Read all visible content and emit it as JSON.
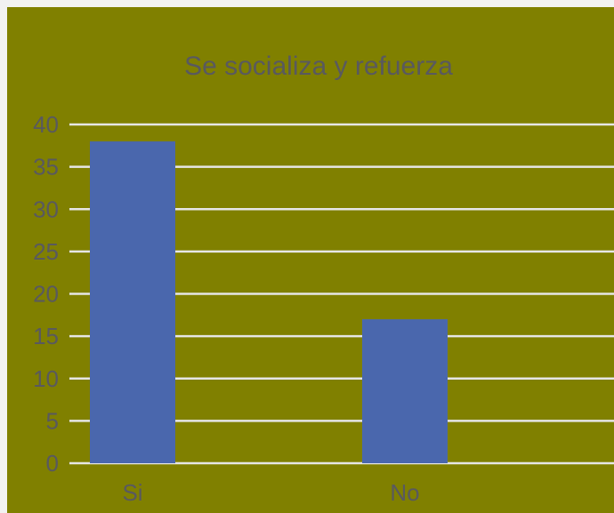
{
  "chart_data": {
    "type": "bar",
    "title": "Se socializa y refuerza",
    "categories": [
      "Si",
      "No"
    ],
    "values": [
      38,
      17
    ],
    "ylim": [
      0,
      40
    ],
    "yticks": [
      0,
      5,
      10,
      15,
      20,
      25,
      30,
      35,
      40
    ],
    "grid": true,
    "legend": "none",
    "colors": {
      "background": "#808000",
      "bar": "#4a67ad",
      "grid": "#e6e6e6",
      "text": "#59595f"
    }
  }
}
